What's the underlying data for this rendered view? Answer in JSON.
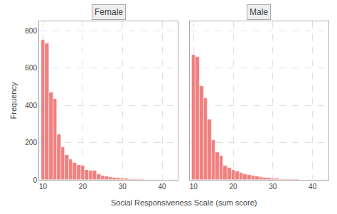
{
  "chart_data": [
    {
      "type": "bar",
      "title": "Female",
      "ylabel": "Frequency",
      "xlabel": "Social Responsiveness Scale (sum score)",
      "x": [
        10,
        11,
        12,
        13,
        14,
        15,
        16,
        17,
        18,
        19,
        20,
        21,
        22,
        23,
        24,
        25,
        26,
        27,
        28,
        29,
        30,
        31,
        32,
        33,
        34,
        35,
        36,
        37,
        38,
        39,
        40,
        41,
        42
      ],
      "values": [
        750,
        730,
        470,
        435,
        245,
        175,
        135,
        110,
        90,
        80,
        75,
        55,
        50,
        48,
        30,
        22,
        18,
        15,
        13,
        10,
        8,
        6,
        5,
        4,
        3,
        2,
        1,
        1,
        1,
        0,
        1,
        0,
        0
      ],
      "color": "#F08080",
      "xlim": [
        9,
        44
      ],
      "xticks": [
        10,
        20,
        30,
        40
      ],
      "ylim": [
        0,
        850
      ],
      "yticks": [
        0,
        200,
        400,
        600,
        800
      ],
      "grid": true
    },
    {
      "type": "bar",
      "title": "Male",
      "x": [
        10,
        11,
        12,
        13,
        14,
        15,
        16,
        17,
        18,
        19,
        20,
        21,
        22,
        23,
        24,
        25,
        26,
        27,
        28,
        29,
        30,
        31,
        32,
        33,
        34,
        35,
        36,
        37,
        38,
        39,
        40,
        41,
        42
      ],
      "values": [
        670,
        660,
        505,
        440,
        325,
        215,
        150,
        130,
        75,
        65,
        55,
        45,
        38,
        32,
        28,
        22,
        18,
        14,
        12,
        10,
        8,
        6,
        5,
        4,
        3,
        2,
        2,
        1,
        1,
        1,
        1,
        0,
        0
      ],
      "color": "#F08080",
      "xlim": [
        9,
        44
      ],
      "xticks": [
        10,
        20,
        30,
        40
      ],
      "ylim": [
        0,
        850
      ],
      "yticks": [
        0,
        200,
        400,
        600,
        800
      ],
      "grid": true,
      "tick_labels": "x"
    }
  ]
}
